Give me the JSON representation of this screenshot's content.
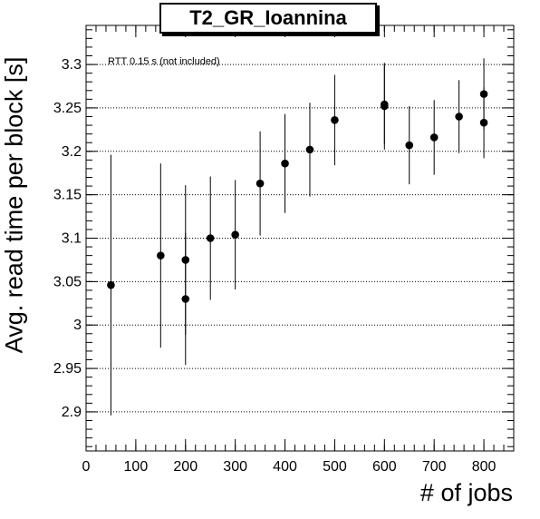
{
  "chart_data": {
    "type": "scatter",
    "title": "T2_GR_Ioannina",
    "xlabel": "# of jobs",
    "ylabel": "Avg. read time per block [s]",
    "annotation": "RTT 0.15 s (not included)",
    "xlim": [
      0,
      860
    ],
    "ylim": [
      2.855,
      3.345
    ],
    "xticks": [
      0,
      100,
      200,
      300,
      400,
      500,
      600,
      700,
      800
    ],
    "yticks": [
      2.9,
      2.95,
      3.0,
      3.05,
      3.1,
      3.15,
      3.2,
      3.25,
      3.3
    ],
    "ytick_labels": [
      "2.9",
      "2.95",
      "3",
      "3.05",
      "3.1",
      "3.15",
      "3.2",
      "3.25",
      "3.3"
    ],
    "grid": "horizontal-dotted",
    "points": [
      {
        "x": 50,
        "y": 3.046,
        "err": 0.15
      },
      {
        "x": 150,
        "y": 3.08,
        "err": 0.106
      },
      {
        "x": 200,
        "y": 3.075,
        "err": 0.086
      },
      {
        "x": 200,
        "y": 3.03,
        "err": 0.076
      },
      {
        "x": 250,
        "y": 3.1,
        "err": 0.071
      },
      {
        "x": 300,
        "y": 3.104,
        "err": 0.063
      },
      {
        "x": 350,
        "y": 3.163,
        "err": 0.06
      },
      {
        "x": 400,
        "y": 3.186,
        "err": 0.057
      },
      {
        "x": 450,
        "y": 3.202,
        "err": 0.054
      },
      {
        "x": 500,
        "y": 3.236,
        "err": 0.052
      },
      {
        "x": 600,
        "y": 3.252,
        "err": 0.05
      },
      {
        "x": 600,
        "y": 3.254,
        "err": 0.046
      },
      {
        "x": 650,
        "y": 3.207,
        "err": 0.045
      },
      {
        "x": 700,
        "y": 3.216,
        "err": 0.043
      },
      {
        "x": 750,
        "y": 3.24,
        "err": 0.042
      },
      {
        "x": 800,
        "y": 3.266,
        "err": 0.041
      },
      {
        "x": 800,
        "y": 3.233,
        "err": 0.041
      }
    ]
  }
}
